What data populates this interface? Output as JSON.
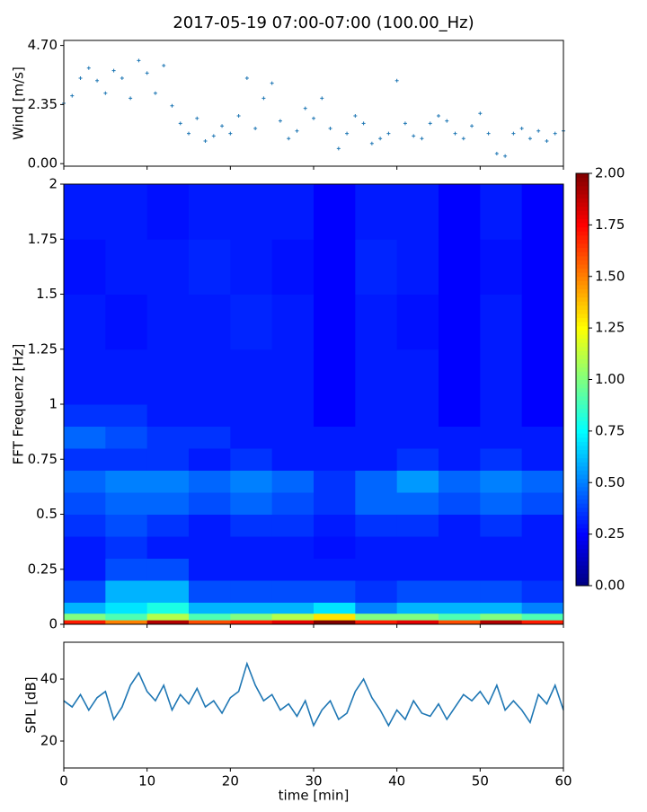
{
  "chart_data": [
    {
      "type": "scatter",
      "title": "2017-05-19 07:00-07:00 (100.00_Hz)",
      "ylabel": "Wind [m/s]",
      "color": "#1f77b4",
      "x": [
        0,
        1,
        2,
        3,
        4,
        5,
        6,
        7,
        8,
        9,
        10,
        11,
        12,
        13,
        14,
        15,
        16,
        17,
        18,
        19,
        20,
        21,
        22,
        23,
        24,
        25,
        26,
        27,
        28,
        29,
        30,
        31,
        32,
        33,
        34,
        35,
        36,
        37,
        38,
        39,
        40,
        41,
        42,
        43,
        44,
        45,
        46,
        47,
        48,
        49,
        50,
        51,
        52,
        53,
        54,
        55,
        56,
        57,
        58,
        59,
        60
      ],
      "values": [
        2.4,
        2.7,
        3.4,
        3.8,
        3.3,
        2.8,
        3.7,
        3.4,
        2.6,
        4.1,
        3.6,
        2.8,
        3.9,
        2.3,
        1.6,
        1.2,
        1.8,
        0.9,
        1.1,
        1.5,
        1.2,
        1.9,
        3.4,
        1.4,
        2.6,
        3.2,
        1.7,
        1.0,
        1.3,
        2.2,
        1.8,
        2.6,
        1.4,
        0.6,
        1.2,
        1.9,
        1.6,
        0.8,
        1.0,
        1.2,
        3.3,
        1.6,
        1.1,
        1.0,
        1.6,
        1.9,
        1.7,
        1.2,
        1.0,
        1.5,
        2.0,
        1.2,
        0.4,
        0.3,
        1.2,
        1.4,
        1.0,
        1.3,
        0.9,
        1.2,
        1.3
      ],
      "xlim": [
        0,
        60
      ],
      "ylim": [
        -0.1,
        4.9
      ],
      "yticks": [
        {
          "value": 0,
          "label": "0.00"
        },
        2.35,
        {
          "value": 4.7,
          "label": "4.70"
        }
      ]
    },
    {
      "type": "heatmap",
      "ylabel": "FFT Frequenz [Hz]",
      "colormap": "jet",
      "xbins": [
        0,
        5,
        10,
        15,
        20,
        25,
        30,
        35,
        40,
        45,
        50,
        55,
        60
      ],
      "ybins": [
        0,
        0.02,
        0.05,
        0.1,
        0.2,
        0.3,
        0.4,
        0.5,
        0.6,
        0.7,
        0.8,
        0.9,
        1.0,
        1.25,
        1.5,
        1.75,
        2
      ],
      "z": [
        [
          1.7,
          1.5,
          1.9,
          1.6,
          1.7,
          1.8,
          2.0,
          1.7,
          1.8,
          1.6,
          1.9,
          1.7
        ],
        [
          1.0,
          0.9,
          1.1,
          0.9,
          1.0,
          1.1,
          1.3,
          1.0,
          1.0,
          0.9,
          1.0,
          0.9
        ],
        [
          0.6,
          0.7,
          0.8,
          0.6,
          0.6,
          0.6,
          0.7,
          0.5,
          0.6,
          0.6,
          0.6,
          0.5
        ],
        [
          0.4,
          0.6,
          0.6,
          0.4,
          0.4,
          0.4,
          0.4,
          0.35,
          0.4,
          0.4,
          0.4,
          0.35
        ],
        [
          0.3,
          0.4,
          0.4,
          0.3,
          0.3,
          0.3,
          0.3,
          0.3,
          0.3,
          0.3,
          0.3,
          0.3
        ],
        [
          0.3,
          0.35,
          0.3,
          0.3,
          0.3,
          0.3,
          0.28,
          0.3,
          0.3,
          0.3,
          0.3,
          0.3
        ],
        [
          0.35,
          0.4,
          0.35,
          0.3,
          0.35,
          0.35,
          0.3,
          0.35,
          0.35,
          0.3,
          0.35,
          0.3
        ],
        [
          0.4,
          0.45,
          0.45,
          0.4,
          0.45,
          0.4,
          0.35,
          0.45,
          0.45,
          0.4,
          0.45,
          0.4
        ],
        [
          0.45,
          0.5,
          0.5,
          0.45,
          0.5,
          0.45,
          0.35,
          0.45,
          0.55,
          0.45,
          0.5,
          0.45
        ],
        [
          0.35,
          0.35,
          0.35,
          0.3,
          0.35,
          0.3,
          0.3,
          0.3,
          0.35,
          0.3,
          0.35,
          0.3
        ],
        [
          0.45,
          0.4,
          0.35,
          0.35,
          0.3,
          0.3,
          0.3,
          0.3,
          0.3,
          0.3,
          0.3,
          0.3
        ],
        [
          0.35,
          0.35,
          0.3,
          0.3,
          0.3,
          0.3,
          0.25,
          0.3,
          0.3,
          0.25,
          0.3,
          0.25
        ],
        [
          0.3,
          0.3,
          0.3,
          0.3,
          0.3,
          0.3,
          0.25,
          0.3,
          0.3,
          0.25,
          0.3,
          0.25
        ],
        [
          0.3,
          0.28,
          0.3,
          0.3,
          0.32,
          0.3,
          0.25,
          0.3,
          0.28,
          0.25,
          0.3,
          0.25
        ],
        [
          0.28,
          0.3,
          0.3,
          0.32,
          0.3,
          0.28,
          0.25,
          0.32,
          0.3,
          0.25,
          0.28,
          0.25
        ],
        [
          0.3,
          0.3,
          0.28,
          0.3,
          0.3,
          0.3,
          0.25,
          0.3,
          0.3,
          0.25,
          0.3,
          0.25
        ]
      ],
      "xlim": [
        0,
        60
      ],
      "ylim": [
        0,
        2
      ],
      "yticks": [
        0,
        0.25,
        0.5,
        0.75,
        1,
        1.25,
        1.5,
        1.75,
        2
      ],
      "clim": [
        0,
        2
      ],
      "cticks": [
        {
          "value": 0,
          "label": "0.00"
        },
        {
          "value": 0.25,
          "label": "0.25"
        },
        {
          "value": 0.5,
          "label": "0.50"
        },
        {
          "value": 0.75,
          "label": "0.75"
        },
        {
          "value": 1,
          "label": "1.00"
        },
        {
          "value": 1.25,
          "label": "1.25"
        },
        {
          "value": 1.5,
          "label": "1.50"
        },
        {
          "value": 1.75,
          "label": "1.75"
        },
        {
          "value": 2,
          "label": "2.00"
        }
      ]
    },
    {
      "type": "line",
      "ylabel": "SPL [dB]",
      "xlabel": "time [min]",
      "color": "#1f77b4",
      "x": [
        0,
        1,
        2,
        3,
        4,
        5,
        6,
        7,
        8,
        9,
        10,
        11,
        12,
        13,
        14,
        15,
        16,
        17,
        18,
        19,
        20,
        21,
        22,
        23,
        24,
        25,
        26,
        27,
        28,
        29,
        30,
        31,
        32,
        33,
        34,
        35,
        36,
        37,
        38,
        39,
        40,
        41,
        42,
        43,
        44,
        45,
        46,
        47,
        48,
        49,
        50,
        51,
        52,
        53,
        54,
        55,
        56,
        57,
        58,
        59,
        60
      ],
      "values": [
        33,
        31,
        35,
        30,
        34,
        36,
        27,
        31,
        38,
        42,
        36,
        33,
        38,
        30,
        35,
        32,
        37,
        31,
        33,
        29,
        34,
        36,
        45,
        38,
        33,
        35,
        30,
        32,
        28,
        33,
        25,
        30,
        33,
        27,
        29,
        36,
        40,
        34,
        30,
        25,
        30,
        27,
        33,
        29,
        28,
        32,
        27,
        31,
        35,
        33,
        36,
        32,
        38,
        30,
        33,
        30,
        26,
        35,
        32,
        38,
        30
      ],
      "xlim": [
        0,
        60
      ],
      "ylim": [
        11.3,
        51.9
      ],
      "yticks": [
        20,
        40
      ],
      "xticks": [
        0,
        10,
        20,
        30,
        40,
        50,
        60
      ]
    }
  ]
}
